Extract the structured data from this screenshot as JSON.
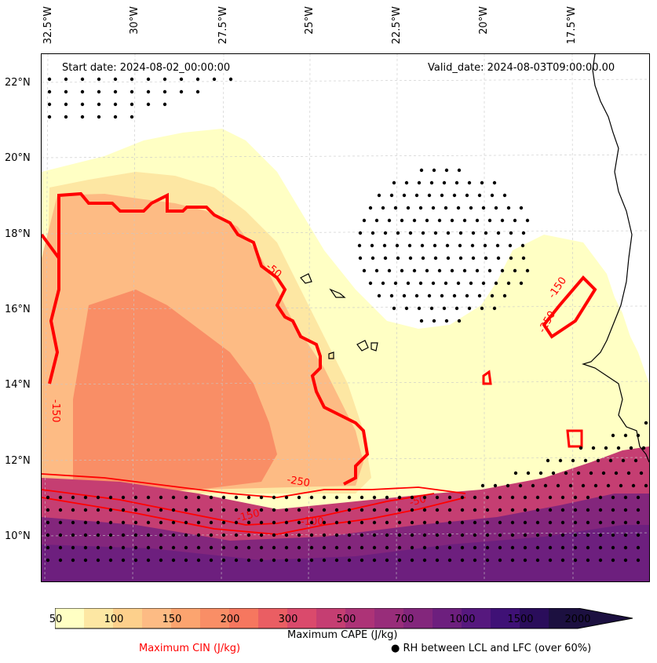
{
  "header": {
    "start_date": "Start date: 2024-08-02_00:00:00",
    "valid_date": "Valid_date: 2024-08-03T09:00:00.00"
  },
  "longitudes": [
    "32.5°W",
    "30°W",
    "27.5°W",
    "25°W",
    "22.5°W",
    "20°W",
    "17.5°W"
  ],
  "latitudes": [
    "22°N",
    "20°N",
    "18°N",
    "16°N",
    "14°N",
    "12°N",
    "10°N"
  ],
  "contour_labels": [
    "-250",
    "-150",
    "-100",
    "-50",
    "-150",
    "-150",
    "-250",
    "-50"
  ],
  "colorbar": {
    "title": "Maximum CAPE (J/kg)",
    "ticks": [
      "50",
      "100",
      "150",
      "200",
      "300",
      "500",
      "700",
      "1000",
      "1500",
      "2000"
    ],
    "colors": [
      "#ffffc4",
      "#fde7a3",
      "#fdd08c",
      "#fdbb84",
      "#fca46f",
      "#f98e66",
      "#f6775f",
      "#ea5e63",
      "#da4a6c",
      "#c53e72",
      "#ad3377",
      "#982d7a",
      "#83267c",
      "#6d1f7e",
      "#56187e",
      "#3f1176",
      "#2a0d5b",
      "#1c1040"
    ]
  },
  "legend": {
    "cin": "Maximum CIN (J/kg)",
    "cin_color": "#ff0000",
    "rh": "● RH between LCL and LFC (over 60%)"
  }
}
